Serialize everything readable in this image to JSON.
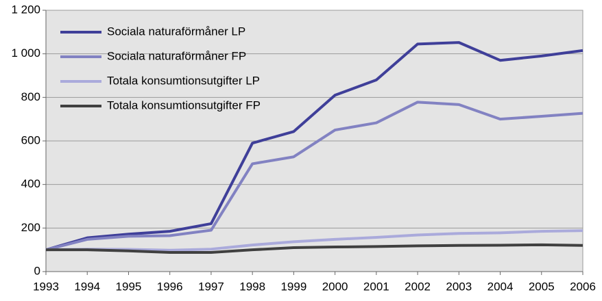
{
  "chart_data": {
    "type": "line",
    "categories": [
      "1993",
      "1994",
      "1995",
      "1996",
      "1997",
      "1998",
      "1999",
      "2000",
      "2001",
      "2002",
      "2003",
      "2004",
      "2005",
      "2006"
    ],
    "series": [
      {
        "name": "Sociala naturaförmåner LP",
        "color": "#3f3f99",
        "values": [
          100,
          155,
          172,
          185,
          220,
          590,
          643,
          810,
          880,
          1045,
          1052,
          970,
          990,
          1015
        ]
      },
      {
        "name": "Sociala naturaförmåner FP",
        "color": "#8282c2",
        "values": [
          100,
          148,
          162,
          165,
          190,
          495,
          527,
          650,
          683,
          778,
          767,
          700,
          713,
          727
        ]
      },
      {
        "name": "Totala konsumtionsutgifter LP",
        "color": "#aaaadb",
        "values": [
          100,
          103,
          102,
          98,
          103,
          122,
          137,
          148,
          157,
          168,
          175,
          178,
          185,
          188
        ]
      },
      {
        "name": "Totala konsumtionsutgifter FP",
        "color": "#404040",
        "values": [
          100,
          100,
          95,
          88,
          88,
          100,
          110,
          113,
          115,
          118,
          120,
          121,
          123,
          120
        ]
      }
    ],
    "ylim": [
      0,
      1200
    ],
    "yticks": [
      0,
      200,
      400,
      600,
      800,
      {
        "value": 1000,
        "label": "1 000"
      },
      {
        "value": 1200,
        "label": "1 200"
      }
    ],
    "grid": true,
    "legend": "top-left"
  }
}
